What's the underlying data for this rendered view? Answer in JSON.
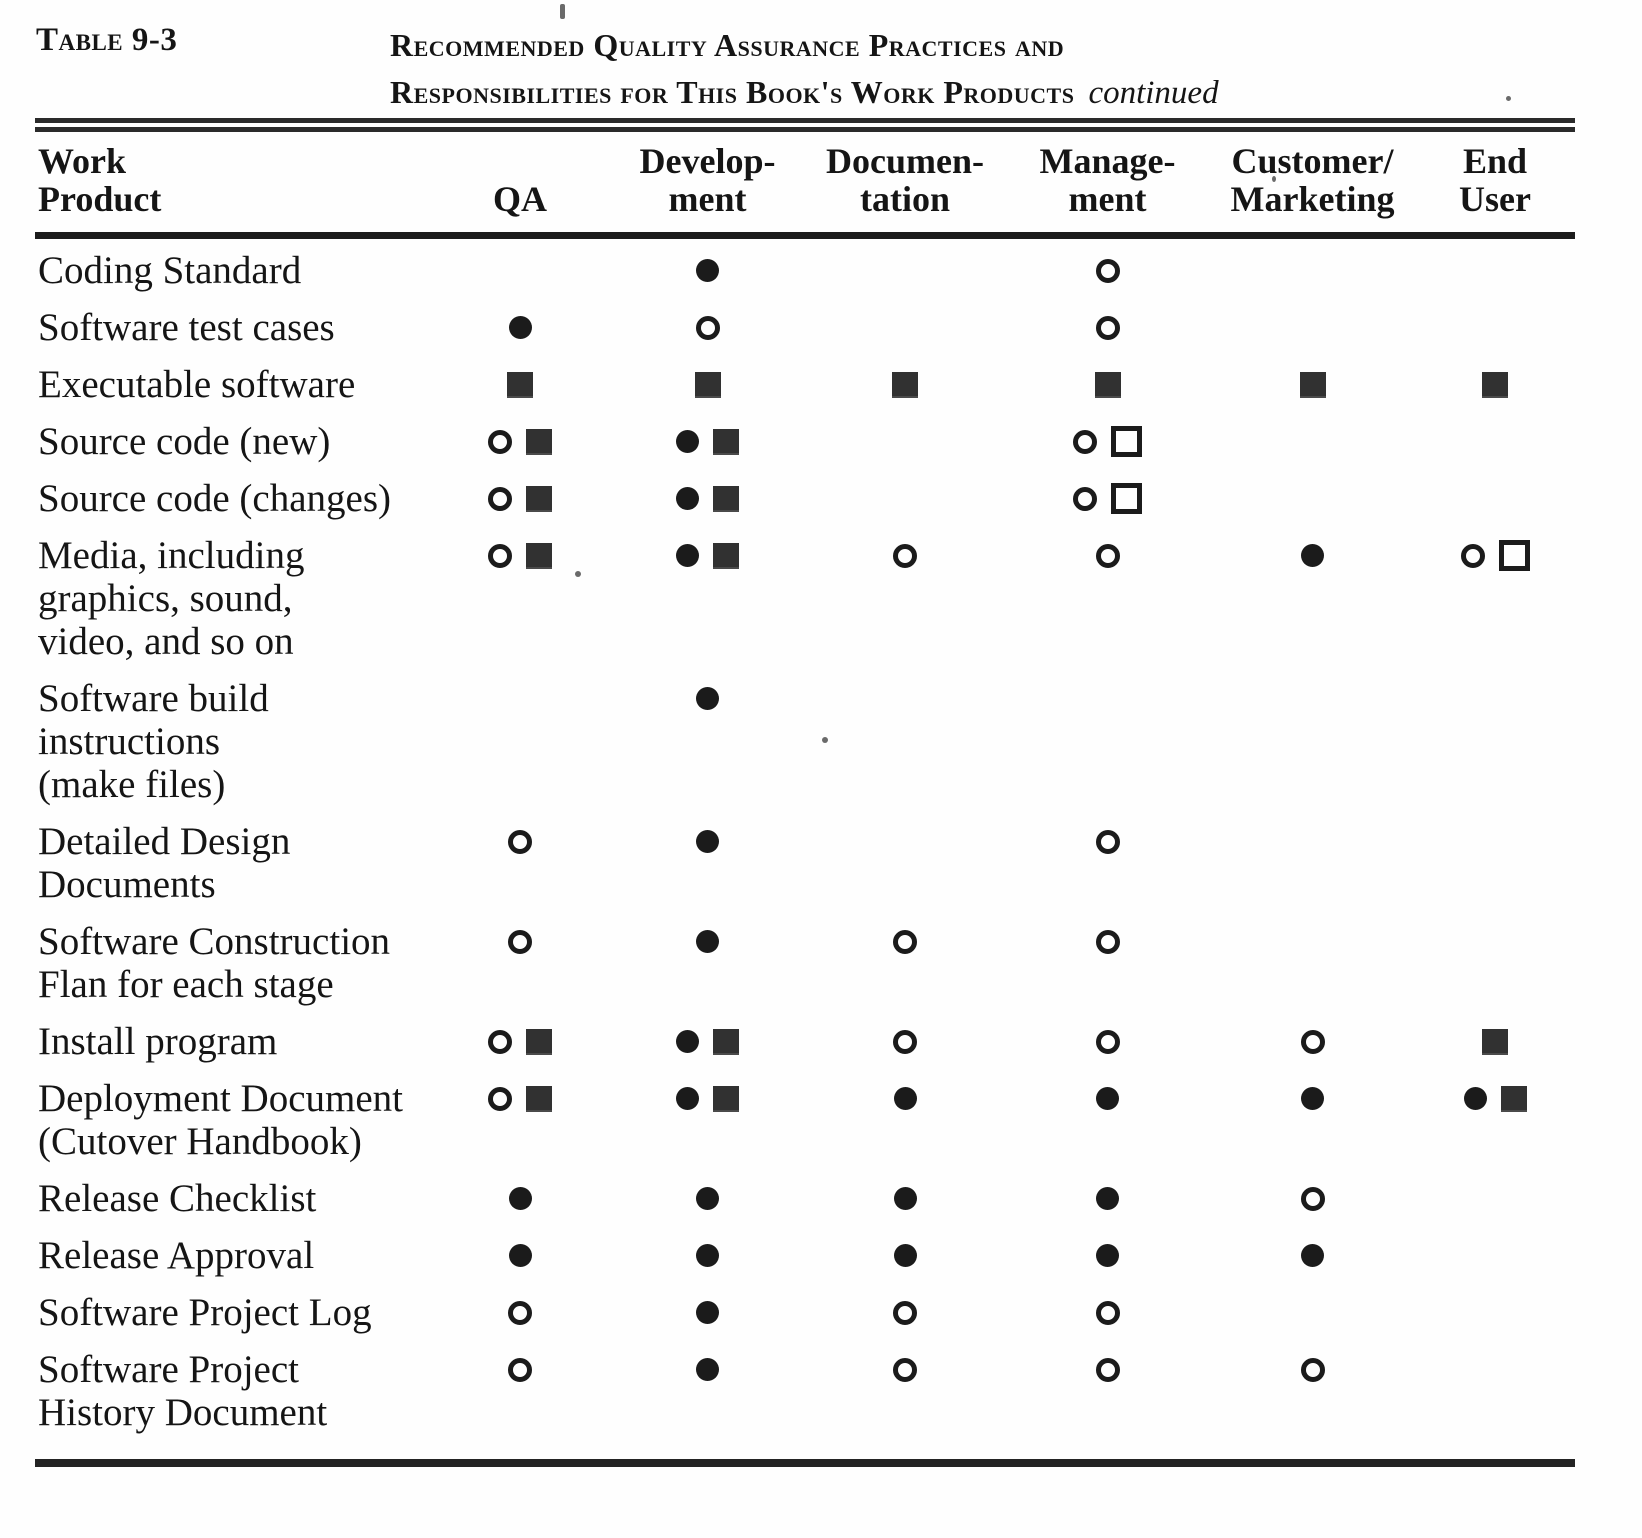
{
  "title": {
    "table_label": "Table 9-3",
    "line1": "Recommended Quality Assurance Practices and",
    "line2": "Responsibilities for This Book's Work Products",
    "continued": "continued"
  },
  "symbols_legend": {
    "filled-circle": "●",
    "open-circle": "○",
    "filled-square": "■",
    "open-square": "□"
  },
  "table": {
    "columns": [
      {
        "l1": "Work",
        "l2": "Product"
      },
      {
        "l1": "",
        "l2": "QA"
      },
      {
        "l1": "Develop-",
        "l2": "ment"
      },
      {
        "l1": "Documen-",
        "l2": "tation"
      },
      {
        "l1": "Manage-",
        "l2": "ment"
      },
      {
        "l1": "Customer/",
        "l2": "Marketing"
      },
      {
        "l1": "End",
        "l2": "User"
      }
    ],
    "rows": [
      {
        "label": [
          "Coding Standard"
        ],
        "qa": [],
        "dev": [
          "filled-circle"
        ],
        "doc": [],
        "mgmt": [
          "open-circle"
        ],
        "cust": [],
        "user": []
      },
      {
        "label": [
          "Software test cases"
        ],
        "qa": [
          "filled-circle"
        ],
        "dev": [
          "open-circle"
        ],
        "doc": [],
        "mgmt": [
          "open-circle"
        ],
        "cust": [],
        "user": []
      },
      {
        "label": [
          "Executable software"
        ],
        "qa": [
          "filled-square"
        ],
        "dev": [
          "filled-square"
        ],
        "doc": [
          "filled-square"
        ],
        "mgmt": [
          "filled-square"
        ],
        "cust": [
          "filled-square"
        ],
        "user": [
          "filled-square"
        ]
      },
      {
        "label": [
          "Source code (new)"
        ],
        "qa": [
          "open-circle",
          "filled-square"
        ],
        "dev": [
          "filled-circle",
          "filled-square"
        ],
        "doc": [],
        "mgmt": [
          "open-circle",
          "open-square"
        ],
        "cust": [],
        "user": []
      },
      {
        "label": [
          "Source code (changes)"
        ],
        "qa": [
          "open-circle",
          "filled-square"
        ],
        "dev": [
          "filled-circle",
          "filled-square"
        ],
        "doc": [],
        "mgmt": [
          "open-circle",
          "open-square"
        ],
        "cust": [],
        "user": []
      },
      {
        "label": [
          "Media, including",
          "graphics, sound,",
          "video, and so on"
        ],
        "qa": [
          "open-circle",
          "filled-square"
        ],
        "dev": [
          "filled-circle",
          "filled-square"
        ],
        "doc": [
          "open-circle"
        ],
        "mgmt": [
          "open-circle"
        ],
        "cust": [
          "filled-circle"
        ],
        "user": [
          "open-circle",
          "open-square"
        ]
      },
      {
        "label": [
          "Software  build",
          "instructions",
          "(make files)"
        ],
        "qa": [],
        "dev": [
          "filled-circle"
        ],
        "doc": [],
        "mgmt": [],
        "cust": [],
        "user": []
      },
      {
        "label": [
          "Detailed Design",
          "Documents"
        ],
        "qa": [
          "open-circle"
        ],
        "dev": [
          "filled-circle"
        ],
        "doc": [],
        "mgmt": [
          "open-circle"
        ],
        "cust": [],
        "user": []
      },
      {
        "label": [
          "Software  Construction",
          "Flan for each stage"
        ],
        "qa": [
          "open-circle"
        ],
        "dev": [
          "filled-circle"
        ],
        "doc": [
          "open-circle"
        ],
        "mgmt": [
          "open-circle"
        ],
        "cust": [],
        "user": []
      },
      {
        "label": [
          "Install program"
        ],
        "qa": [
          "open-circle",
          "filled-square"
        ],
        "dev": [
          "filled-circle",
          "filled-square"
        ],
        "doc": [
          "open-circle"
        ],
        "mgmt": [
          "open-circle"
        ],
        "cust": [
          "open-circle"
        ],
        "user": [
          "filled-square"
        ]
      },
      {
        "label": [
          "Deployment Document",
          "(Cutover  Handbook)"
        ],
        "qa": [
          "open-circle",
          "filled-square"
        ],
        "dev": [
          "filled-circle",
          "filled-square"
        ],
        "doc": [
          "filled-circle"
        ],
        "mgmt": [
          "filled-circle"
        ],
        "cust": [
          "filled-circle"
        ],
        "user": [
          "filled-circle",
          "filled-square"
        ]
      },
      {
        "label": [
          "Release  Checklist"
        ],
        "qa": [
          "filled-circle"
        ],
        "dev": [
          "filled-circle"
        ],
        "doc": [
          "filled-circle"
        ],
        "mgmt": [
          "filled-circle"
        ],
        "cust": [
          "open-circle"
        ],
        "user": []
      },
      {
        "label": [
          "Release  Approval"
        ],
        "qa": [
          "filled-circle"
        ],
        "dev": [
          "filled-circle"
        ],
        "doc": [
          "filled-circle"
        ],
        "mgmt": [
          "filled-circle"
        ],
        "cust": [
          "filled-circle"
        ],
        "user": []
      },
      {
        "label": [
          "Software Project Log"
        ],
        "qa": [
          "open-circle"
        ],
        "dev": [
          "filled-circle"
        ],
        "doc": [
          "open-circle"
        ],
        "mgmt": [
          "open-circle"
        ],
        "cust": [],
        "user": []
      },
      {
        "label": [
          "Software Project",
          "History Document"
        ],
        "qa": [
          "open-circle"
        ],
        "dev": [
          "filled-circle"
        ],
        "doc": [
          "open-circle"
        ],
        "mgmt": [
          "open-circle"
        ],
        "cust": [
          "open-circle"
        ],
        "user": []
      }
    ]
  }
}
